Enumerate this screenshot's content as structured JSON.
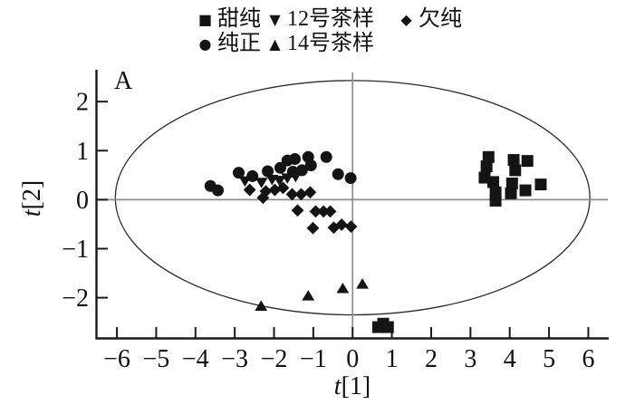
{
  "figure": {
    "panel_label": "A",
    "colors": {
      "marker": "#141414",
      "axis": "#1a1a1a",
      "zero_line": "#8c8c8c",
      "ellipse": "#2b2b2b",
      "text": "#111111"
    }
  },
  "legend": {
    "row1_item_lefts": [
      218,
      295,
      440
    ],
    "row2_item_lefts": [
      218,
      295
    ]
  },
  "chart_data": {
    "type": "scatter",
    "title": "",
    "xlabel": "t[1]",
    "xlabel_var": "t",
    "xlabel_rest": "[1]",
    "ylabel": "t[2]",
    "ylabel_var": "t",
    "ylabel_rest": "[2]",
    "xlim": [
      -6.52,
      6.52
    ],
    "ylim": [
      -2.83,
      2.65
    ],
    "xticks": [
      -6,
      -5,
      -4,
      -3,
      -2,
      -1,
      0,
      1,
      2,
      3,
      4,
      5,
      6
    ],
    "yticks": [
      -2,
      -1,
      0,
      1,
      2
    ],
    "grid": false,
    "zero_lines": true,
    "ellipse": {
      "cx": 0,
      "cy": 0.04,
      "rx": 6.04,
      "ry": 2.39
    },
    "legend_position": "top",
    "series": [
      {
        "id": "sweet-pure",
        "label": "甜纯",
        "marker": "square",
        "glyph": "■",
        "points": [
          [
            3.46,
            0.87
          ],
          [
            3.41,
            0.68
          ],
          [
            4.1,
            0.81
          ],
          [
            4.45,
            0.79
          ],
          [
            4.14,
            0.6
          ],
          [
            3.36,
            0.45
          ],
          [
            3.58,
            0.36
          ],
          [
            4.06,
            0.33
          ],
          [
            4.79,
            0.31
          ],
          [
            4.4,
            0.19
          ],
          [
            3.64,
            0.15
          ],
          [
            4.03,
            0.13
          ],
          [
            3.64,
            -0.02
          ],
          [
            0.65,
            -2.6
          ],
          [
            0.78,
            -2.53
          ],
          [
            0.9,
            -2.6
          ]
        ]
      },
      {
        "id": "pure",
        "label": "纯正",
        "marker": "circle",
        "glyph": "●",
        "points": [
          [
            -3.62,
            0.28
          ],
          [
            -3.43,
            0.19
          ],
          [
            -2.9,
            0.55
          ],
          [
            -2.55,
            0.48
          ],
          [
            -2.16,
            0.58
          ],
          [
            -1.84,
            0.65
          ],
          [
            -1.66,
            0.8
          ],
          [
            -1.52,
            0.57
          ],
          [
            -1.47,
            0.83
          ],
          [
            -1.29,
            0.6
          ],
          [
            -1.13,
            0.87
          ],
          [
            -1.06,
            0.7
          ],
          [
            -0.67,
            0.87
          ],
          [
            -0.37,
            0.52
          ],
          [
            -0.05,
            0.44
          ]
        ]
      },
      {
        "id": "tea-sample-12",
        "label": "12号茶样",
        "marker": "triangle-down",
        "glyph": "▼",
        "points": [
          [
            -2.74,
            0.38
          ],
          [
            -2.32,
            0.35
          ],
          [
            -2.05,
            0.41
          ],
          [
            -1.86,
            0.39
          ],
          [
            -1.66,
            0.44
          ],
          [
            -1.45,
            0.47
          ]
        ]
      },
      {
        "id": "tea-sample-14",
        "label": "14号茶样",
        "marker": "triangle-up",
        "glyph": "▲",
        "points": [
          [
            -2.33,
            -2.17
          ],
          [
            -1.13,
            -1.96
          ],
          [
            -0.25,
            -1.81
          ],
          [
            0.25,
            -1.72
          ]
        ]
      },
      {
        "id": "off-pure",
        "label": "欠纯",
        "marker": "diamond",
        "glyph": "◆",
        "points": [
          [
            -2.62,
            0.2
          ],
          [
            -2.28,
            0.04
          ],
          [
            -2.21,
            0.17
          ],
          [
            -1.98,
            0.2
          ],
          [
            -1.77,
            0.24
          ],
          [
            -1.54,
            0.11
          ],
          [
            -1.31,
            0.11
          ],
          [
            -1.08,
            0.15
          ],
          [
            -1.4,
            -0.22
          ],
          [
            -0.94,
            -0.24
          ],
          [
            -0.74,
            -0.24
          ],
          [
            -0.57,
            -0.24
          ],
          [
            -1.01,
            -0.58
          ],
          [
            -0.48,
            -0.57
          ],
          [
            -0.28,
            -0.51
          ],
          [
            -0.04,
            -0.55
          ]
        ]
      }
    ]
  }
}
